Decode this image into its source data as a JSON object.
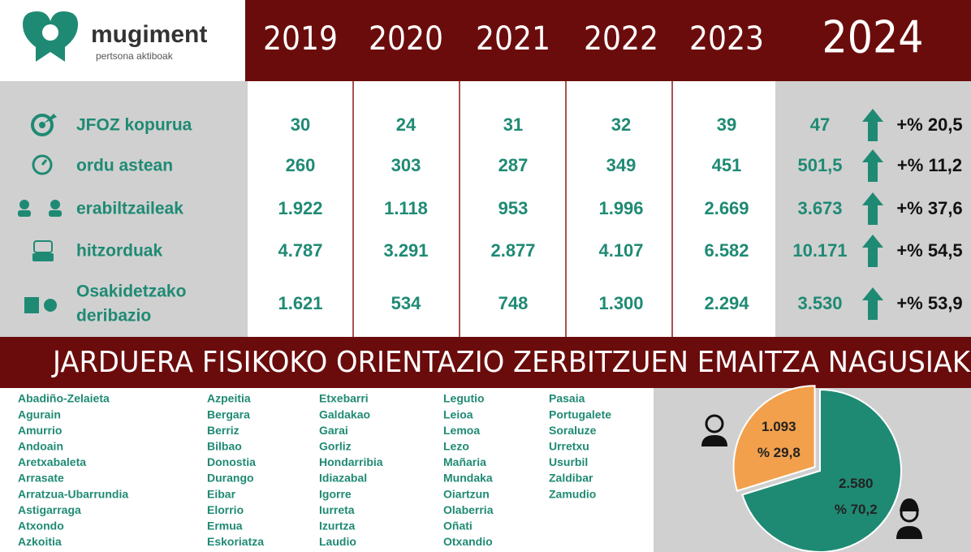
{
  "logo": {
    "name": "mugiment",
    "tagline": "pertsona aktiboak"
  },
  "table": {
    "years": [
      "2019",
      "2020",
      "2021",
      "2022",
      "2023",
      "2024"
    ],
    "rows": [
      {
        "label": [
          "JFOZ kopurua"
        ],
        "values": [
          "30",
          "24",
          "31",
          "32",
          "39",
          "47"
        ],
        "change": "+% 20,5"
      },
      {
        "label": [
          "ordu astean"
        ],
        "values": [
          "260",
          "303",
          "287",
          "349",
          "451",
          "501,5"
        ],
        "change": "+% 11,2"
      },
      {
        "label": [
          "erabiltzaileak"
        ],
        "values": [
          "1.922",
          "1.118",
          "953",
          "1.996",
          "2.669",
          "3.673"
        ],
        "change": "+% 37,6"
      },
      {
        "label": [
          "hitzorduak"
        ],
        "values": [
          "4.787",
          "3.291",
          "2.877",
          "4.107",
          "6.582",
          "10.171"
        ],
        "change": "+% 54,5"
      },
      {
        "label": [
          "Osakidetzako",
          "deribazio"
        ],
        "values": [
          "1.621",
          "534",
          "748",
          "1.300",
          "2.294",
          "3.530"
        ],
        "change": "+% 53,9"
      }
    ]
  },
  "banner": "JARDUERA FISIKOKO ORIENTAZIO ZERBITZUEN EMAITZA NAGUSIAK",
  "municipalities": [
    [
      "Abadiño-Zelaieta",
      "Agurain",
      "Amurrio",
      "Andoain",
      "Aretxabaleta",
      "Arrasate",
      "Arratzua-Ubarrundia",
      "Astigarraga",
      "Atxondo",
      "Azkoitia"
    ],
    [
      "Azpeitia",
      "Bergara",
      "Berriz",
      "Bilbao",
      "Donostia",
      "Durango",
      "Eibar",
      "Elorrio",
      "Ermua",
      "Eskoriatza"
    ],
    [
      "Etxebarri",
      "Galdakao",
      "Garai",
      "Gorliz",
      "Hondarribia",
      "Idiazabal",
      "Igorre",
      "Iurreta",
      "Izurtza",
      "Laudio"
    ],
    [
      "Legutio",
      "Leioa",
      "Lemoa",
      "Lezo",
      "Mañaria",
      "Mundaka",
      "Oiartzun",
      "Olaberria",
      "Oñati",
      "Otxandio"
    ],
    [
      "Pasaia",
      "Portugalete",
      "Soraluze",
      "Urretxu",
      "Usurbil",
      "Zaldibar",
      "Zamudio"
    ]
  ],
  "chart_data": {
    "type": "pie",
    "values": [
      1093,
      2580
    ],
    "value_labels": [
      "1.093",
      "2.580"
    ],
    "percent_labels": [
      "% 29,8",
      "% 70,2"
    ],
    "colors": [
      "#f2a04c",
      "#1f8a74"
    ]
  }
}
